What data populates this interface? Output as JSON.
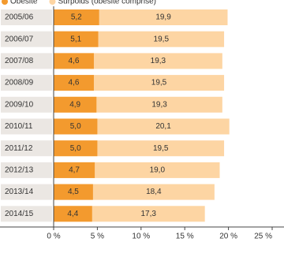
{
  "chart_data": {
    "type": "bar",
    "categories": [
      "2005/06",
      "2006/07",
      "2007/08",
      "2008/09",
      "2009/10",
      "2010/11",
      "2011/12",
      "2012/13",
      "2013/14",
      "2014/15"
    ],
    "series": [
      {
        "name": "Obésité",
        "color": "#f39a2e",
        "values": [
          5.2,
          5.1,
          4.6,
          4.6,
          4.9,
          5.0,
          5.0,
          4.7,
          4.5,
          4.4
        ],
        "value_labels": [
          "5,2",
          "5,1",
          "4,6",
          "4,6",
          "4,9",
          "5,0",
          "5,0",
          "4,7",
          "4,5",
          "4,4"
        ]
      },
      {
        "name": "Surpoids (obésité comprise)",
        "color": "#fdd5a3",
        "values": [
          19.9,
          19.5,
          19.3,
          19.5,
          19.3,
          20.1,
          19.5,
          19.0,
          18.4,
          17.3
        ],
        "value_labels": [
          "19,9",
          "19,5",
          "19,3",
          "19,5",
          "19,3",
          "20,1",
          "19,5",
          "19,0",
          "18,4",
          "17,3"
        ]
      }
    ],
    "xlim": [
      0,
      25
    ],
    "xticks": [
      {
        "value": 0,
        "label": "0 %"
      },
      {
        "value": 5,
        "label": "5 %"
      },
      {
        "value": 10,
        "label": "10 %"
      },
      {
        "value": 15,
        "label": "15 %"
      },
      {
        "value": 20,
        "label": "20 %"
      },
      {
        "value": 25,
        "label": "25 %"
      }
    ]
  }
}
